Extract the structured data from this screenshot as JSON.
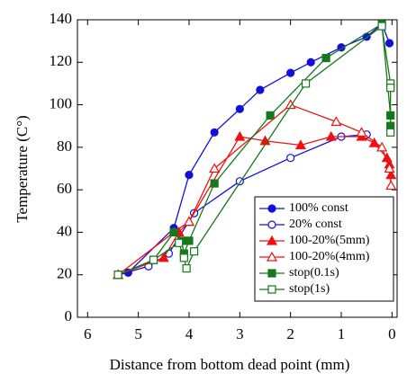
{
  "chart_data": {
    "type": "line",
    "xlabel": "Distance from bottom dead point (mm)",
    "ylabel": "Temperature (C°)",
    "xlim": [
      6.2,
      -0.1
    ],
    "xticks": [
      6,
      5,
      4,
      3,
      2,
      1,
      0
    ],
    "ylim": [
      0,
      140
    ],
    "yticks": [
      0,
      20,
      40,
      60,
      80,
      100,
      120,
      140
    ],
    "legend": "lower right",
    "series": [
      {
        "name": "100% const",
        "color": "#1010d8",
        "marker": "circle",
        "filled": true,
        "x": [
          5.4,
          5.2,
          4.3,
          4.0,
          3.5,
          3.0,
          2.6,
          2.0,
          1.6,
          1.0,
          0.5,
          0.2,
          0.05
        ],
        "values": [
          20,
          21,
          42,
          67,
          87,
          98,
          107,
          115,
          120,
          127,
          132,
          138,
          129
        ]
      },
      {
        "name": "20% const",
        "color": "#1010d8",
        "marker": "circle",
        "filled": false,
        "x": [
          5.4,
          4.8,
          4.4,
          3.9,
          3.0,
          2.0,
          1.0,
          0.5
        ],
        "values": [
          20,
          24,
          30,
          49,
          64,
          75,
          85,
          86
        ]
      },
      {
        "name": "100-20%(5mm)",
        "color": "#f01010",
        "marker": "triangle",
        "filled": true,
        "x": [
          5.4,
          4.5,
          4.2,
          4.0,
          3.0,
          2.5,
          1.8,
          1.2,
          0.6,
          0.35,
          0.1,
          0.05,
          0.02
        ],
        "values": [
          20,
          28,
          40,
          45,
          85,
          83,
          81,
          85,
          85,
          82,
          75,
          72,
          67
        ]
      },
      {
        "name": "100-20%(4mm)",
        "color": "#f01010",
        "marker": "triangle",
        "filled": false,
        "x": [
          5.4,
          4.3,
          4.0,
          3.5,
          2.0,
          1.1,
          0.6,
          0.2,
          0.05,
          0.02
        ],
        "values": [
          20,
          40,
          45,
          70,
          100,
          92,
          87,
          80,
          70,
          62
        ]
      },
      {
        "name": "stop(0.1s)",
        "color": "#16781a",
        "marker": "square",
        "filled": true,
        "x": [
          5.4,
          4.7,
          4.3,
          4.15,
          4.1,
          4.0,
          3.5,
          2.4,
          1.3,
          0.2,
          0.03,
          0.03
        ],
        "values": [
          20,
          27,
          40,
          36,
          30,
          36,
          63,
          95,
          122,
          138,
          95,
          90
        ]
      },
      {
        "name": "stop(1s)",
        "color": "#16781a",
        "marker": "square",
        "filled": false,
        "x": [
          5.4,
          4.7,
          4.2,
          4.1,
          4.05,
          3.9,
          1.7,
          0.2,
          0.03,
          0.03,
          0.03
        ],
        "values": [
          20,
          27,
          35,
          28,
          23,
          31,
          110,
          137,
          110,
          108,
          87
        ]
      }
    ]
  }
}
